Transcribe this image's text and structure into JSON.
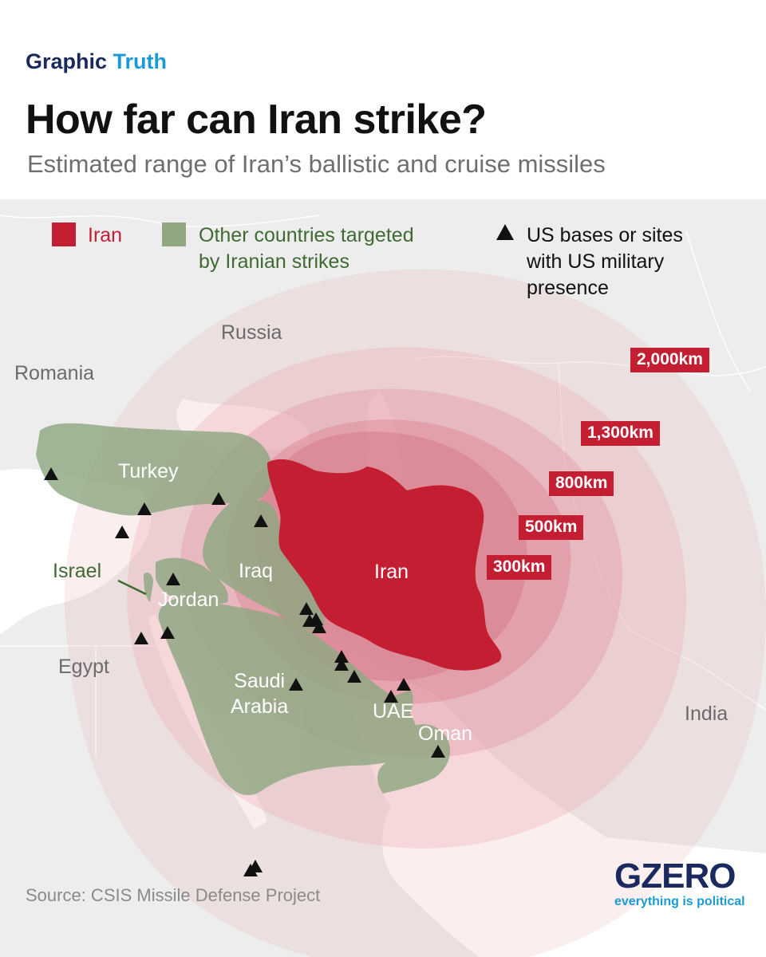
{
  "header": {
    "kicker_part1": "Graphic",
    "kicker_part2": "Truth",
    "title": "How far can Iran strike?",
    "subtitle": "Estimated range of Iran’s  ballistic and cruise missiles"
  },
  "legend": {
    "iran": "Iran",
    "targeted": "Other countries targeted by Iranian strikes",
    "targeted_line1": "Other countries targeted",
    "targeted_line2": "by Iranian strikes",
    "us_line1": "US bases or sites",
    "us_line2": "with US military",
    "us_line3": "presence"
  },
  "ranges": [
    "2,000km",
    "1,300km",
    "800km",
    "500km",
    "300km"
  ],
  "countries": {
    "russia": "Russia",
    "romania": "Romania",
    "turkey": "Turkey",
    "israel": "Israel",
    "iraq": "Iraq",
    "jordan": "Jordan",
    "iran": "Iran",
    "egypt": "Egypt",
    "saudi_line1": "Saudi",
    "saudi_line2": "Arabia",
    "uae": "UAE",
    "oman": "Oman",
    "india": "India"
  },
  "colors": {
    "iran": "#c41e33",
    "targeted": "#8fa882",
    "range_ring": "#e8a0a8",
    "range_badge": "#c41e33",
    "brand_navy": "#1a2a5e",
    "brand_blue": "#1a9ad6"
  },
  "icons": {
    "us_base": "triangle-icon"
  },
  "source": "Source: CSIS Missile Defense Project",
  "logo": {
    "name": "GZERO",
    "tagline": "everything is political"
  }
}
